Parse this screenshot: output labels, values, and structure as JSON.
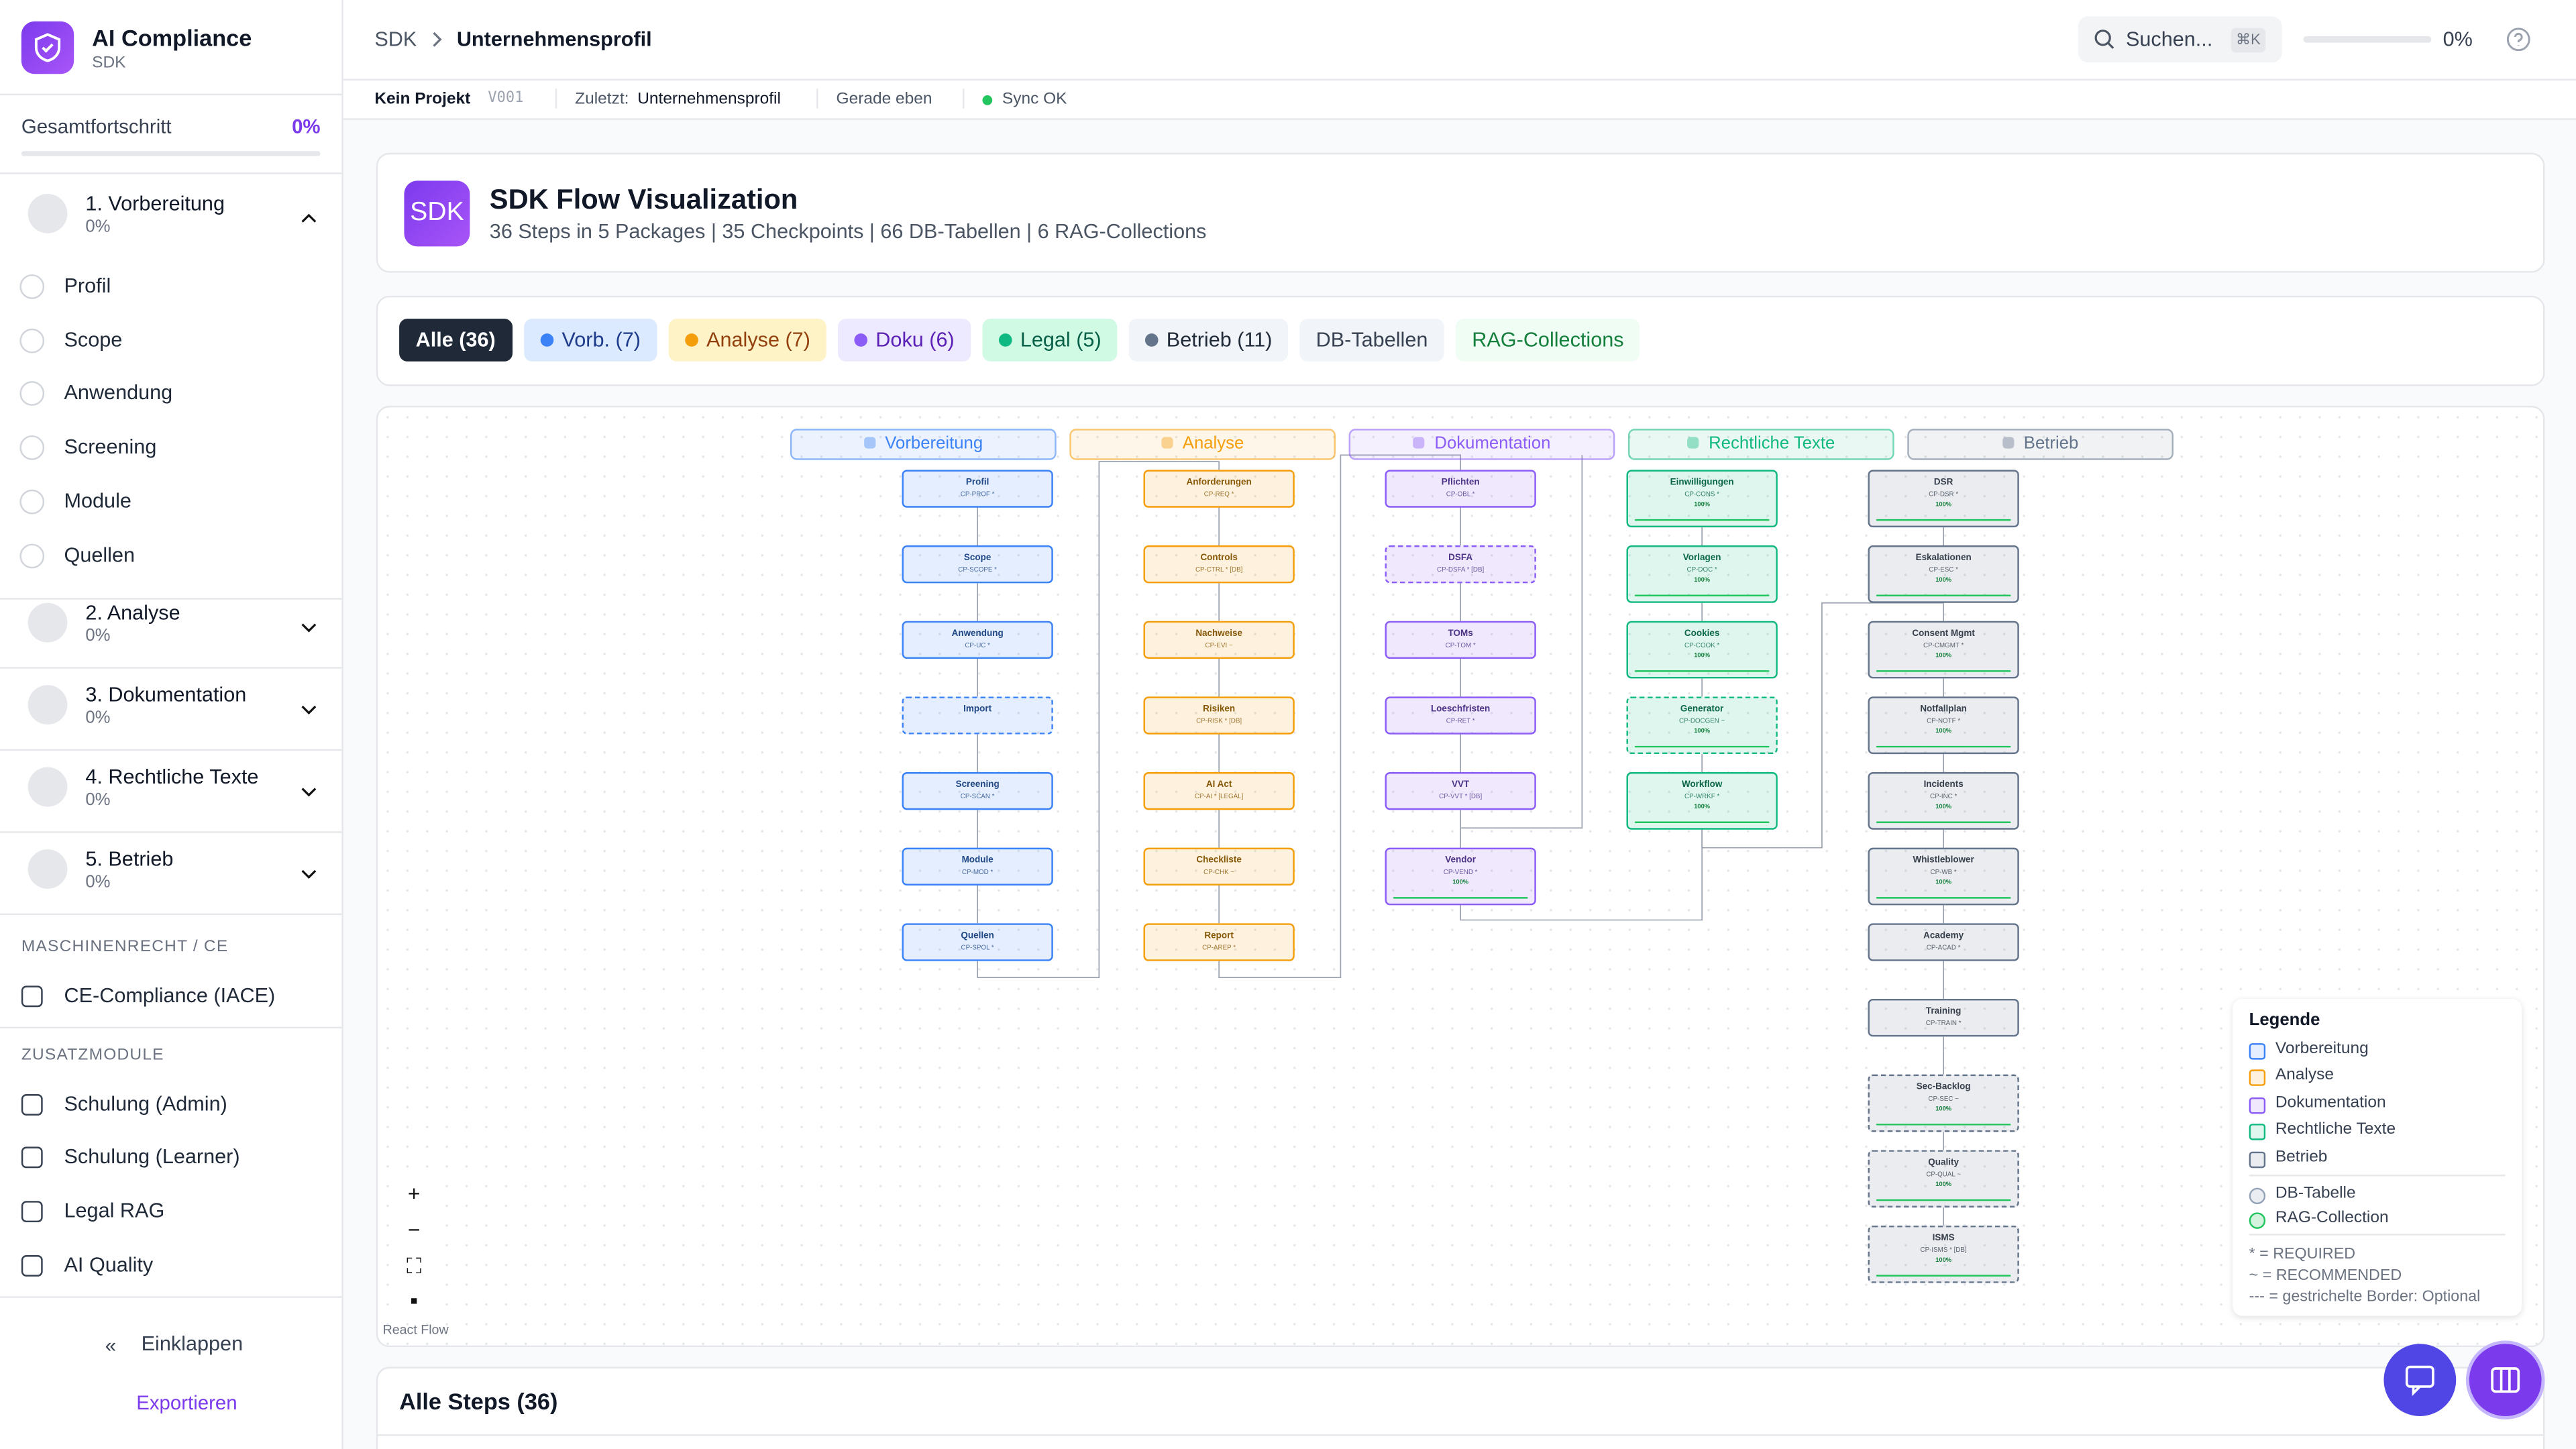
{
  "sidebar": {
    "brand": {
      "title": "AI Compliance",
      "subtitle": "SDK"
    },
    "progress": {
      "label": "Gesamtfortschritt",
      "value": "0%"
    },
    "sections": [
      {
        "title": "1. Vorbereitung",
        "progress": "0%",
        "items": [
          "Profil",
          "Scope",
          "Anwendung",
          "Screening",
          "Module",
          "Quellen"
        ]
      },
      {
        "title": "2. Analyse",
        "progress": "0%"
      },
      {
        "title": "3. Dokumentation",
        "progress": "0%"
      },
      {
        "title": "4. Rechtliche Texte",
        "progress": "0%"
      },
      {
        "title": "5. Betrieb",
        "progress": "0%"
      }
    ],
    "groups": [
      {
        "heading": "MASCHINENRECHT / CE",
        "items": [
          "CE-Compliance (IACE)"
        ]
      },
      {
        "heading": "ZUSATZMODULE",
        "items": [
          "Schulung (Admin)",
          "Schulung (Learner)",
          "Legal RAG",
          "AI Quality"
        ]
      }
    ],
    "collapse": "Einklappen",
    "export": "Exportieren"
  },
  "topbar": {
    "breadcrumb": [
      "SDK",
      "Unternehmensprofil"
    ],
    "search": "Suchen...",
    "shortcut": "⌘K",
    "progress": "0%"
  },
  "statusbar": {
    "project": "Kein Projekt",
    "version": "V001",
    "last_label": "Zuletzt:",
    "last_value": "Unternehmensprofil",
    "time": "Gerade eben",
    "sync": "Sync OK"
  },
  "header": {
    "icon": "SDK",
    "title": "SDK Flow Visualization",
    "subtitle": "36 Steps in 5 Packages | 35 Checkpoints | 66 DB-Tabellen | 6 RAG-Collections"
  },
  "filters": [
    {
      "label": "Alle (36)",
      "active": true
    },
    {
      "label": "Vorb. (7)",
      "color": "#3b82f6"
    },
    {
      "label": "Analyse (7)",
      "color": "#f59e0b"
    },
    {
      "label": "Doku (6)",
      "color": "#8b5cf6"
    },
    {
      "label": "Legal (5)",
      "color": "#10b981"
    },
    {
      "label": "Betrieb (11)",
      "color": "#64748b"
    },
    {
      "label": "DB-Tabellen"
    },
    {
      "label": "RAG-Collections"
    }
  ],
  "flow": {
    "attribution": "React Flow",
    "packages": [
      {
        "name": "Vorbereitung",
        "color": "#3b82f6",
        "steps": [
          {
            "name": "Profil",
            "code": "CP-PROF *"
          },
          {
            "name": "Scope",
            "code": "CP-SCOPE *"
          },
          {
            "name": "Anwendung",
            "code": "CP-UC *"
          },
          {
            "name": "Import",
            "optional": true
          },
          {
            "name": "Screening",
            "code": "CP-SCAN *"
          },
          {
            "name": "Module",
            "code": "CP-MOD *"
          },
          {
            "name": "Quellen",
            "code": "CP-SPOL *"
          }
        ]
      },
      {
        "name": "Analyse",
        "color": "#f59e0b",
        "steps": [
          {
            "name": "Anforderungen",
            "code": "CP-REQ *"
          },
          {
            "name": "Controls",
            "code": "CP-CTRL * [DB]"
          },
          {
            "name": "Nachweise",
            "code": "CP-EVI ~"
          },
          {
            "name": "Risiken",
            "code": "CP-RISK * [DB]"
          },
          {
            "name": "AI Act",
            "code": "CP-AI * [LEGAL]"
          },
          {
            "name": "Checkliste",
            "code": "CP-CHK ~"
          },
          {
            "name": "Report",
            "code": "CP-AREP *"
          }
        ]
      },
      {
        "name": "Dokumentation",
        "color": "#8b5cf6",
        "steps": [
          {
            "name": "Pflichten",
            "code": "CP-OBL *"
          },
          {
            "name": "DSFA",
            "code": "CP-DSFA * [DB]",
            "optional": true
          },
          {
            "name": "TOMs",
            "code": "CP-TOM *"
          },
          {
            "name": "Loeschfristen",
            "code": "CP-RET *"
          },
          {
            "name": "VVT",
            "code": "CP-VVT * [DB]"
          },
          {
            "name": "Vendor",
            "code": "CP-VEND *",
            "progress": "100%"
          }
        ]
      },
      {
        "name": "Rechtliche Texte",
        "color": "#10b981",
        "steps": [
          {
            "name": "Einwilligungen",
            "code": "CP-CONS *",
            "progress": "100%"
          },
          {
            "name": "Vorlagen",
            "code": "CP-DOC *",
            "progress": "100%"
          },
          {
            "name": "Cookies",
            "code": "CP-COOK *",
            "progress": "100%"
          },
          {
            "name": "Generator",
            "code": "CP-DOCGEN ~",
            "progress": "100%",
            "optional": true
          },
          {
            "name": "Workflow",
            "code": "CP-WRKF *",
            "progress": "100%"
          }
        ]
      },
      {
        "name": "Betrieb",
        "color": "#64748b",
        "steps": [
          {
            "name": "DSR",
            "code": "CP-DSR *",
            "progress": "100%"
          },
          {
            "name": "Eskalationen",
            "code": "CP-ESC *",
            "progress": "100%"
          },
          {
            "name": "Consent Mgmt",
            "code": "CP-CMGMT *",
            "progress": "100%"
          },
          {
            "name": "Notfallplan",
            "code": "CP-NOTF *",
            "progress": "100%"
          },
          {
            "name": "Incidents",
            "code": "CP-INC *",
            "progress": "100%"
          },
          {
            "name": "Whistleblower",
            "code": "CP-WB *",
            "progress": "100%"
          },
          {
            "name": "Academy",
            "code": "CP-ACAD *"
          },
          {
            "name": "Training",
            "code": "CP-TRAIN *"
          },
          {
            "name": "Sec-Backlog",
            "code": "CP-SEC ~",
            "progress": "100%",
            "optional": true
          },
          {
            "name": "Quality",
            "code": "CP-QUAL ~",
            "progress": "100%",
            "optional": true
          },
          {
            "name": "ISMS",
            "code": "CP-ISMS * [DB]",
            "progress": "100%",
            "optional": true
          }
        ]
      }
    ]
  },
  "legend": {
    "title": "Legende",
    "types": [
      {
        "name": "DB-Tabelle",
        "color": "#94a3b8"
      },
      {
        "name": "RAG-Collection",
        "color": "#22c55e"
      }
    ],
    "notes": [
      "* = REQUIRED",
      "~ = RECOMMENDED",
      "--- = gestrichelte Border: Optional"
    ]
  },
  "steps_panel": {
    "title": "Alle Steps (36)"
  }
}
